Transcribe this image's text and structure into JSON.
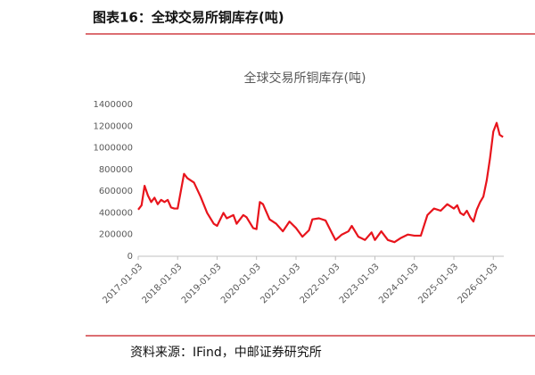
{
  "header": {
    "title": "图表16：全球交易所铜库存(吨)"
  },
  "chart_data": {
    "type": "line",
    "title": "全球交易所铜库存(吨)",
    "color": "#e8141c",
    "x": [
      "2017-01-03",
      "2017-02-03",
      "2017-03-03",
      "2017-04-03",
      "2017-05-03",
      "2017-06-03",
      "2017-07-03",
      "2017-08-03",
      "2017-09-03",
      "2017-10-03",
      "2017-11-03",
      "2017-12-03",
      "2018-01-03",
      "2018-03-03",
      "2018-04-03",
      "2018-06-03",
      "2018-08-03",
      "2018-10-03",
      "2018-12-03",
      "2019-01-03",
      "2019-03-03",
      "2019-04-03",
      "2019-06-03",
      "2019-07-03",
      "2019-09-03",
      "2019-10-03",
      "2019-12-03",
      "2020-01-03",
      "2020-02-03",
      "2020-03-03",
      "2020-05-03",
      "2020-07-03",
      "2020-09-03",
      "2020-11-03",
      "2021-01-03",
      "2021-03-03",
      "2021-05-03",
      "2021-06-03",
      "2021-08-03",
      "2021-10-03",
      "2021-12-03",
      "2022-01-03",
      "2022-03-03",
      "2022-05-03",
      "2022-06-03",
      "2022-08-03",
      "2022-10-03",
      "2022-12-03",
      "2023-01-03",
      "2023-03-03",
      "2023-05-03",
      "2023-07-03",
      "2023-09-03",
      "2023-11-03",
      "2024-01-03",
      "2024-03-03",
      "2024-05-03",
      "2024-07-03",
      "2024-09-03",
      "2024-11-03",
      "2025-01-03",
      "2025-02-03",
      "2025-03-03",
      "2025-04-03",
      "2025-05-03",
      "2025-06-03",
      "2025-07-03",
      "2025-08-03",
      "2025-09-03",
      "2025-10-03",
      "2025-11-03",
      "2025-12-03",
      "2026-01-03",
      "2026-02-03",
      "2026-03-03",
      "2026-04-03"
    ],
    "values": [
      430000,
      470000,
      650000,
      560000,
      500000,
      540000,
      480000,
      520000,
      500000,
      520000,
      450000,
      440000,
      440000,
      760000,
      720000,
      680000,
      550000,
      400000,
      300000,
      280000,
      400000,
      350000,
      380000,
      300000,
      380000,
      360000,
      260000,
      250000,
      500000,
      480000,
      340000,
      300000,
      230000,
      320000,
      260000,
      180000,
      240000,
      340000,
      350000,
      330000,
      210000,
      150000,
      200000,
      230000,
      280000,
      180000,
      150000,
      220000,
      150000,
      230000,
      150000,
      130000,
      170000,
      200000,
      190000,
      190000,
      380000,
      440000,
      420000,
      480000,
      440000,
      470000,
      400000,
      380000,
      420000,
      360000,
      320000,
      430000,
      500000,
      550000,
      700000,
      900000,
      1150000,
      1230000,
      1120000,
      1100000
    ],
    "xlim": [
      "2017-01-03",
      "2026-04-10"
    ],
    "xticks": [
      "2017-01-03",
      "2018-01-03",
      "2019-01-03",
      "2020-01-03",
      "2021-01-03",
      "2022-01-03",
      "2023-01-03",
      "2024-01-03",
      "2025-01-03",
      "2026-01-03"
    ],
    "ylim": [
      0,
      1400000
    ],
    "yticks": [
      0,
      200000,
      400000,
      600000,
      800000,
      1000000,
      1200000,
      1400000
    ]
  },
  "footer": {
    "source": "资料来源：IFind，中邮证券研究所"
  }
}
